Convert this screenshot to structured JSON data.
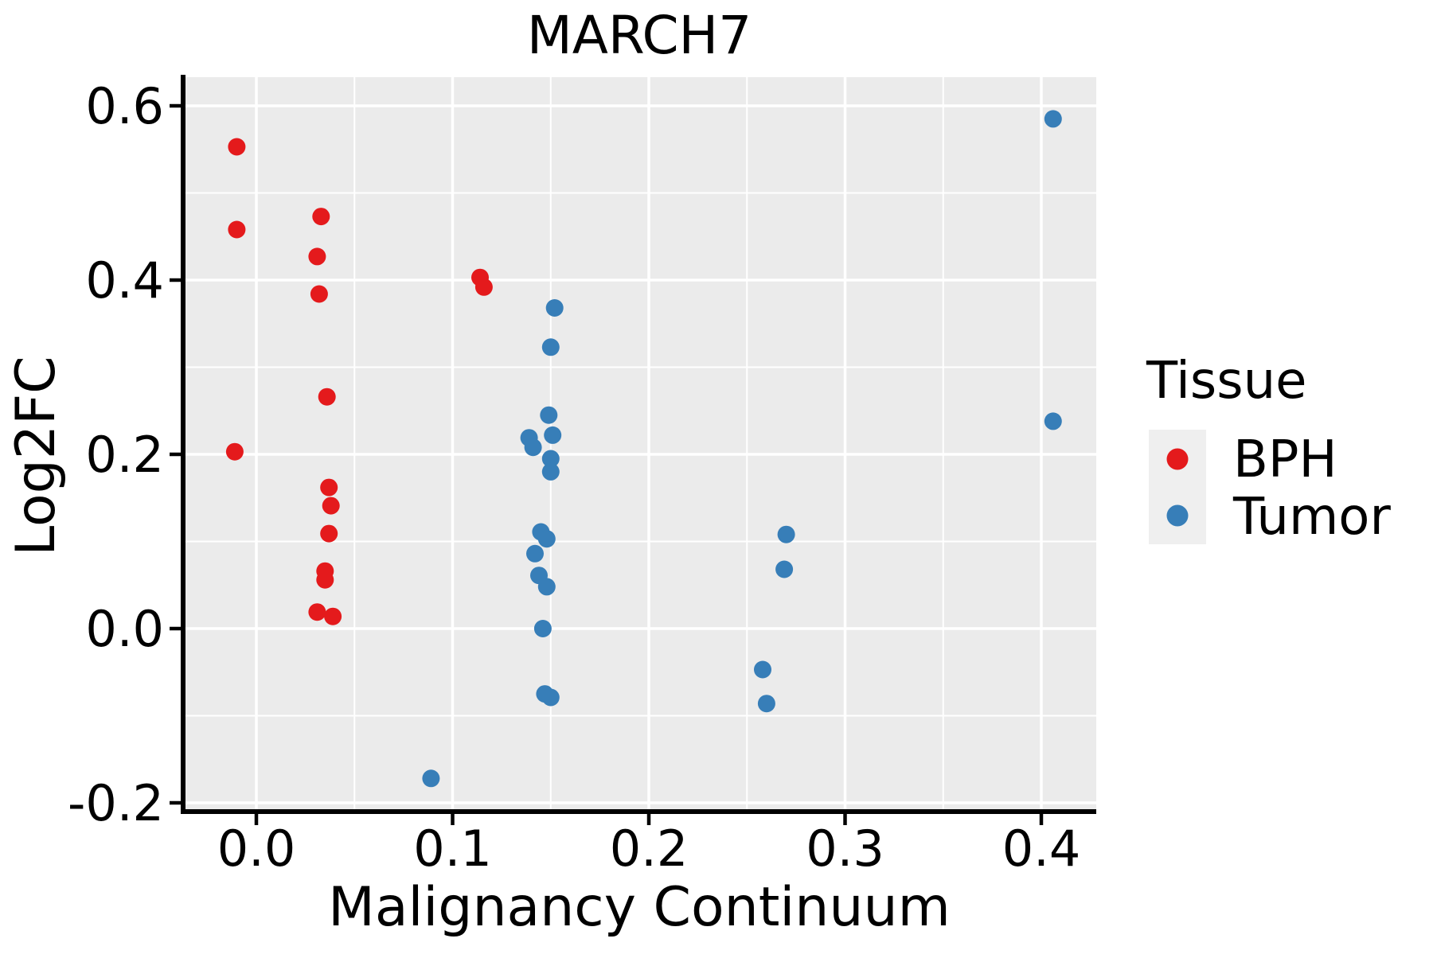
{
  "title": "MARCH7",
  "axes": {
    "x_label": "Malignancy Continuum",
    "y_label": "Log2FC"
  },
  "legend": {
    "title": "Tissue",
    "items": [
      {
        "label": "BPH",
        "color": "#E41A1C"
      },
      {
        "label": "Tumor",
        "color": "#377EB8"
      }
    ]
  },
  "colors": {
    "panel_background": "#EBEBEB",
    "grid_major": "#FFFFFF",
    "grid_minor": "#FFFFFF",
    "axis_line": "#000000",
    "text": "#000000",
    "legend_key_background": "#EFEFEF",
    "bph": "#E41A1C",
    "tumor": "#377EB8"
  },
  "chart_data": {
    "type": "scatter",
    "title": "MARCH7",
    "xlabel": "Malignancy Continuum",
    "ylabel": "Log2FC",
    "xlim": [
      -0.037,
      0.428
    ],
    "ylim": [
      -0.21,
      0.633
    ],
    "x_ticks": [
      0.0,
      0.1,
      0.2,
      0.3,
      0.4
    ],
    "y_ticks": [
      -0.2,
      0.0,
      0.2,
      0.4,
      0.6
    ],
    "x_minor_ticks": [
      0.05,
      0.15,
      0.25,
      0.35
    ],
    "y_minor_ticks": [
      -0.1,
      0.1,
      0.3,
      0.5
    ],
    "grid": "white major and minor gridlines on gray panel",
    "legend_position": "right",
    "point_radius_px": 11,
    "series": [
      {
        "name": "BPH",
        "color": "#E41A1C",
        "points": [
          [
            -0.01,
            0.553
          ],
          [
            -0.01,
            0.458
          ],
          [
            -0.011,
            0.203
          ],
          [
            0.033,
            0.473
          ],
          [
            0.031,
            0.427
          ],
          [
            0.032,
            0.384
          ],
          [
            0.036,
            0.266
          ],
          [
            0.037,
            0.162
          ],
          [
            0.038,
            0.141
          ],
          [
            0.037,
            0.109
          ],
          [
            0.035,
            0.066
          ],
          [
            0.035,
            0.056
          ],
          [
            0.031,
            0.019
          ],
          [
            0.039,
            0.014
          ],
          [
            0.114,
            0.403
          ],
          [
            0.116,
            0.392
          ]
        ]
      },
      {
        "name": "Tumor",
        "color": "#377EB8",
        "points": [
          [
            0.152,
            0.368
          ],
          [
            0.15,
            0.323
          ],
          [
            0.149,
            0.245
          ],
          [
            0.151,
            0.222
          ],
          [
            0.139,
            0.219
          ],
          [
            0.141,
            0.208
          ],
          [
            0.15,
            0.195
          ],
          [
            0.15,
            0.18
          ],
          [
            0.145,
            0.111
          ],
          [
            0.148,
            0.103
          ],
          [
            0.142,
            0.086
          ],
          [
            0.144,
            0.061
          ],
          [
            0.148,
            0.048
          ],
          [
            0.146,
            0.0
          ],
          [
            0.147,
            -0.075
          ],
          [
            0.15,
            -0.079
          ],
          [
            0.089,
            -0.172
          ],
          [
            0.27,
            0.108
          ],
          [
            0.269,
            0.068
          ],
          [
            0.258,
            -0.047
          ],
          [
            0.26,
            -0.086
          ],
          [
            0.406,
            0.585
          ],
          [
            0.406,
            0.238
          ]
        ]
      }
    ]
  }
}
